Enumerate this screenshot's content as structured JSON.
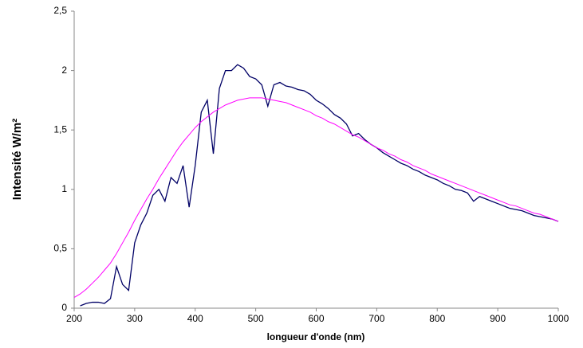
{
  "chart_data": {
    "type": "line",
    "xlabel": "longueur d'onde (nm)",
    "ylabel": "Intensité W/m²",
    "x": [
      200,
      210,
      220,
      230,
      240,
      250,
      260,
      270,
      280,
      290,
      300,
      310,
      320,
      330,
      340,
      350,
      360,
      370,
      380,
      390,
      400,
      410,
      420,
      430,
      440,
      450,
      460,
      470,
      480,
      490,
      500,
      510,
      520,
      530,
      540,
      550,
      560,
      570,
      580,
      590,
      600,
      610,
      620,
      630,
      640,
      650,
      660,
      670,
      680,
      690,
      700,
      710,
      720,
      730,
      740,
      750,
      760,
      770,
      780,
      790,
      800,
      810,
      820,
      830,
      840,
      850,
      860,
      870,
      880,
      890,
      900,
      910,
      920,
      930,
      940,
      950,
      960,
      970,
      980,
      990,
      1000
    ],
    "series": [
      {
        "color": "#000066",
        "values": [
          null,
          0.02,
          0.04,
          0.05,
          0.05,
          0.04,
          0.08,
          0.35,
          0.2,
          0.15,
          0.55,
          0.7,
          0.8,
          0.95,
          1.0,
          0.9,
          1.1,
          1.05,
          1.2,
          0.85,
          1.2,
          1.65,
          1.75,
          1.3,
          1.85,
          2.0,
          2.0,
          2.05,
          2.02,
          1.95,
          1.93,
          1.88,
          1.7,
          1.88,
          1.9,
          1.87,
          1.86,
          1.84,
          1.83,
          1.8,
          1.75,
          1.72,
          1.68,
          1.63,
          1.6,
          1.55,
          1.45,
          1.47,
          1.42,
          1.38,
          1.35,
          1.31,
          1.28,
          1.25,
          1.22,
          1.2,
          1.17,
          1.15,
          1.12,
          1.1,
          1.08,
          1.05,
          1.03,
          1.0,
          0.99,
          0.97,
          0.9,
          0.94,
          0.92,
          0.9,
          0.88,
          0.86,
          0.84,
          0.83,
          0.82,
          0.8,
          0.78,
          0.77,
          0.76,
          0.75,
          0.73
        ]
      },
      {
        "color": "#ff00ff",
        "values": [
          0.09,
          0.12,
          0.16,
          0.21,
          0.26,
          0.32,
          0.38,
          0.46,
          0.55,
          0.64,
          0.74,
          0.83,
          0.92,
          1.0,
          1.09,
          1.17,
          1.25,
          1.33,
          1.4,
          1.46,
          1.52,
          1.57,
          1.61,
          1.65,
          1.68,
          1.71,
          1.73,
          1.75,
          1.76,
          1.77,
          1.77,
          1.77,
          1.76,
          1.75,
          1.74,
          1.73,
          1.71,
          1.69,
          1.67,
          1.65,
          1.62,
          1.6,
          1.57,
          1.55,
          1.52,
          1.49,
          1.46,
          1.44,
          1.41,
          1.38,
          1.35,
          1.33,
          1.3,
          1.28,
          1.25,
          1.23,
          1.2,
          1.18,
          1.16,
          1.13,
          1.11,
          1.09,
          1.07,
          1.05,
          1.03,
          1.01,
          0.99,
          0.97,
          0.95,
          0.93,
          0.91,
          0.89,
          0.87,
          0.86,
          0.84,
          0.82,
          0.8,
          0.79,
          0.77,
          0.75,
          0.73
        ]
      }
    ],
    "xlim": [
      200,
      1000
    ],
    "xticks": [
      200,
      300,
      400,
      500,
      600,
      700,
      800,
      900,
      1000
    ],
    "ylim": [
      0,
      2.5
    ],
    "yticks": [
      0,
      {
        "value": 0.5,
        "label": "0,5"
      },
      1,
      {
        "value": 1.5,
        "label": "1,5"
      },
      2,
      {
        "value": 2.5,
        "label": "2,5"
      }
    ],
    "grid": false
  }
}
